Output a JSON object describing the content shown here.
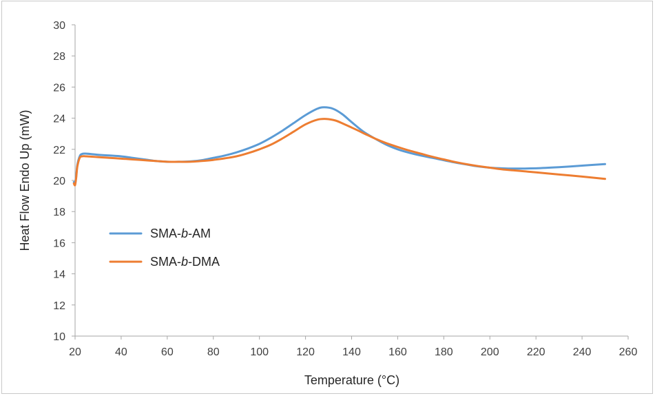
{
  "chart_data": {
    "type": "line",
    "title": "",
    "xlabel": "Temperature (°C)",
    "ylabel": "Heat Flow Endo Up (mW)",
    "xlim": [
      20,
      260
    ],
    "ylim": [
      10,
      30
    ],
    "xticks": [
      20,
      40,
      60,
      80,
      100,
      120,
      140,
      160,
      180,
      200,
      220,
      240,
      260
    ],
    "yticks": [
      10,
      12,
      14,
      16,
      18,
      20,
      22,
      24,
      26,
      28,
      30
    ],
    "grid": false,
    "legend_position": "left-middle",
    "series": [
      {
        "name": "SMA-b-AM",
        "color": "#5b9bd5",
        "x": [
          19.5,
          20,
          20.5,
          21,
          22,
          23,
          25,
          30,
          35,
          40,
          45,
          50,
          55,
          60,
          65,
          70,
          75,
          80,
          85,
          90,
          95,
          100,
          105,
          110,
          115,
          120,
          125,
          128,
          132,
          136,
          140,
          145,
          150,
          155,
          160,
          165,
          170,
          175,
          180,
          185,
          190,
          195,
          200,
          205,
          210,
          220,
          230,
          240,
          250
        ],
        "y": [
          19.9,
          19.8,
          20.3,
          21.0,
          21.55,
          21.7,
          21.72,
          21.65,
          21.6,
          21.55,
          21.45,
          21.35,
          21.25,
          21.2,
          21.2,
          21.22,
          21.3,
          21.45,
          21.6,
          21.8,
          22.05,
          22.35,
          22.75,
          23.2,
          23.7,
          24.2,
          24.6,
          24.7,
          24.6,
          24.25,
          23.75,
          23.15,
          22.7,
          22.3,
          22.0,
          21.78,
          21.6,
          21.45,
          21.3,
          21.15,
          21.02,
          20.9,
          20.82,
          20.78,
          20.76,
          20.78,
          20.85,
          20.95,
          21.05
        ]
      },
      {
        "name": "SMA-b-DMA",
        "color": "#ed7d31",
        "x": [
          19.5,
          20,
          20.5,
          21,
          22,
          23,
          25,
          30,
          35,
          40,
          45,
          50,
          55,
          60,
          65,
          70,
          75,
          80,
          85,
          90,
          95,
          100,
          105,
          110,
          115,
          120,
          125,
          129,
          133,
          137,
          140,
          145,
          150,
          155,
          160,
          165,
          170,
          175,
          180,
          185,
          190,
          195,
          200,
          205,
          210,
          220,
          230,
          240,
          250
        ],
        "y": [
          19.8,
          19.7,
          20.2,
          20.9,
          21.45,
          21.55,
          21.55,
          21.5,
          21.45,
          21.4,
          21.35,
          21.3,
          21.25,
          21.2,
          21.2,
          21.2,
          21.25,
          21.32,
          21.42,
          21.55,
          21.75,
          22.0,
          22.3,
          22.7,
          23.15,
          23.6,
          23.9,
          23.95,
          23.85,
          23.6,
          23.4,
          23.05,
          22.7,
          22.4,
          22.15,
          21.92,
          21.72,
          21.52,
          21.35,
          21.18,
          21.04,
          20.92,
          20.82,
          20.72,
          20.65,
          20.52,
          20.38,
          20.25,
          20.1
        ]
      }
    ]
  },
  "legend": {
    "items": [
      {
        "prefix": "SMA-",
        "italic": "b",
        "suffix": "-AM"
      },
      {
        "prefix": "SMA-",
        "italic": "b",
        "suffix": "-DMA"
      }
    ]
  }
}
